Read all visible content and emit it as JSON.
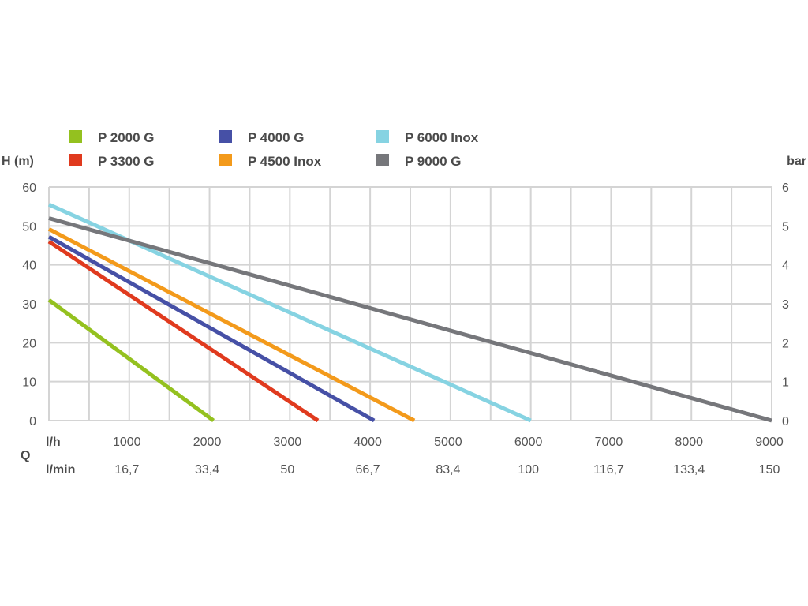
{
  "chart_data": {
    "type": "line",
    "title": "",
    "y_left_label": "H (m)",
    "y_right_label": "bar",
    "q_label": "Q",
    "row_lh_label": "l/h",
    "row_lmin_label": "l/min",
    "ylim": [
      0,
      60
    ],
    "xlim": [
      0,
      9000
    ],
    "y_left_ticks": [
      "0",
      "10",
      "20",
      "30",
      "40",
      "50",
      "60"
    ],
    "y_right_ticks": [
      "0",
      "1",
      "2",
      "3",
      "4",
      "5",
      "6"
    ],
    "x_ticks_lh": [
      "1000",
      "2000",
      "3000",
      "4000",
      "5000",
      "6000",
      "7000",
      "8000",
      "9000"
    ],
    "x_ticks_lmin": [
      "16,7",
      "33,4",
      "50",
      "66,7",
      "83,4",
      "100",
      "116,7",
      "133,4",
      "150"
    ],
    "x_tick_values": [
      1000,
      2000,
      3000,
      4000,
      5000,
      6000,
      7000,
      8000,
      9000
    ],
    "grid": true,
    "legend_position": "top",
    "series": [
      {
        "name": "P 2000 G",
        "color": "#94c11f",
        "points": [
          [
            0,
            31
          ],
          [
            2050,
            0
          ]
        ]
      },
      {
        "name": "P 3300 G",
        "color": "#e03a1e",
        "points": [
          [
            0,
            46
          ],
          [
            3350,
            0
          ]
        ]
      },
      {
        "name": "P 4000 G",
        "color": "#4650a6",
        "points": [
          [
            0,
            47.2
          ],
          [
            4050,
            0
          ]
        ]
      },
      {
        "name": "P 4500 Inox",
        "color": "#f39a1b",
        "points": [
          [
            0,
            49.2
          ],
          [
            4550,
            0
          ]
        ]
      },
      {
        "name": "P 6000 Inox",
        "color": "#86d3e2",
        "points": [
          [
            0,
            55.5
          ],
          [
            6000,
            0
          ]
        ]
      },
      {
        "name": "P 9000 G",
        "color": "#76777b",
        "points": [
          [
            0,
            52
          ],
          [
            9000,
            0
          ]
        ]
      }
    ]
  }
}
